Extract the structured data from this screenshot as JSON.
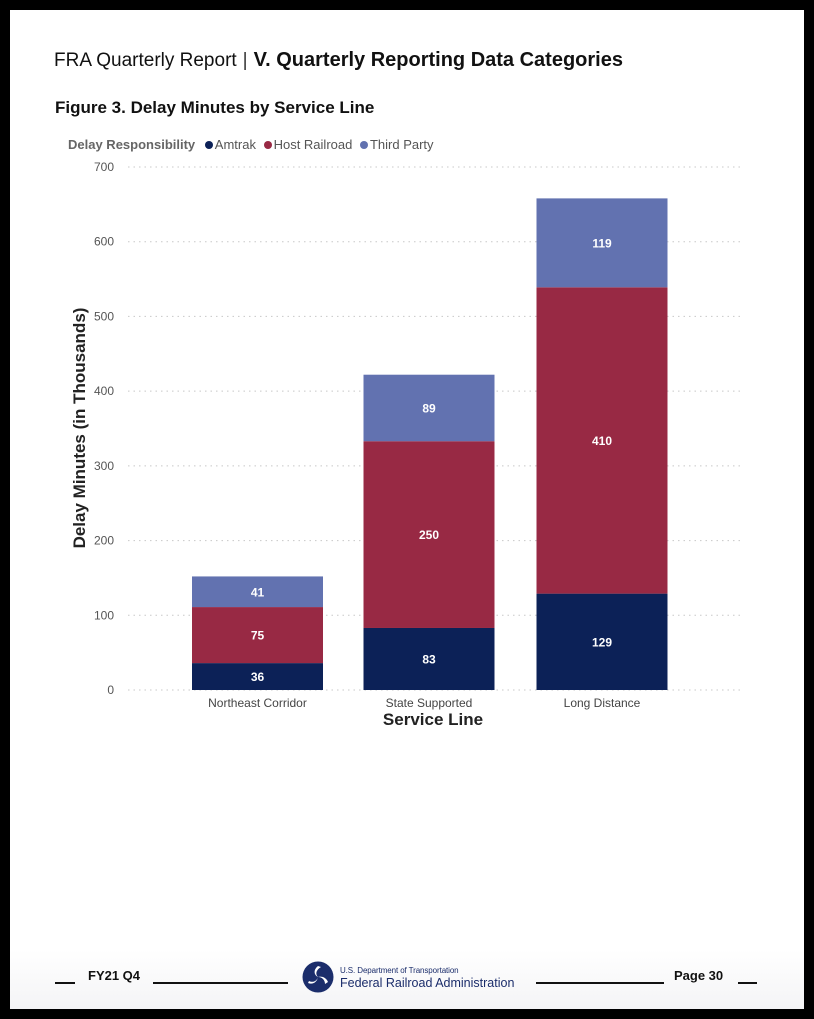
{
  "header": {
    "report_title": "FRA Quarterly Report",
    "separator": "|",
    "section_title": "V. Quarterly Reporting Data Categories"
  },
  "figure": {
    "title": "Figure 3. Delay Minutes by Service Line"
  },
  "legend": {
    "title": "Delay Responsibility",
    "items": [
      {
        "label": "Amtrak",
        "color": "#0c2157"
      },
      {
        "label": "Host Railroad",
        "color": "#982944"
      },
      {
        "label": "Third Party",
        "color": "#6272b0"
      }
    ]
  },
  "chart_data": {
    "type": "bar",
    "stacked": true,
    "title": "Figure 3. Delay Minutes by Service Line",
    "xlabel": "Service Line",
    "ylabel": "Delay Minutes (in Thousands)",
    "categories": [
      "Northeast Corridor",
      "State Supported",
      "Long Distance"
    ],
    "series": [
      {
        "name": "Amtrak",
        "color": "#0c2157",
        "values": [
          36,
          83,
          129
        ]
      },
      {
        "name": "Host Railroad",
        "color": "#982944",
        "values": [
          75,
          250,
          410
        ]
      },
      {
        "name": "Third Party",
        "color": "#6272b0",
        "values": [
          41,
          89,
          119
        ]
      }
    ],
    "ylim": [
      0,
      700
    ],
    "yticks": [
      0,
      100,
      200,
      300,
      400,
      500,
      600,
      700
    ],
    "grid": true,
    "legend_position": "top-left",
    "data_labels": true
  },
  "footer": {
    "period": "FY21 Q4",
    "dept": "U.S. Department of Transportation",
    "agency": "Federal Railroad Administration",
    "page": "Page 30"
  }
}
